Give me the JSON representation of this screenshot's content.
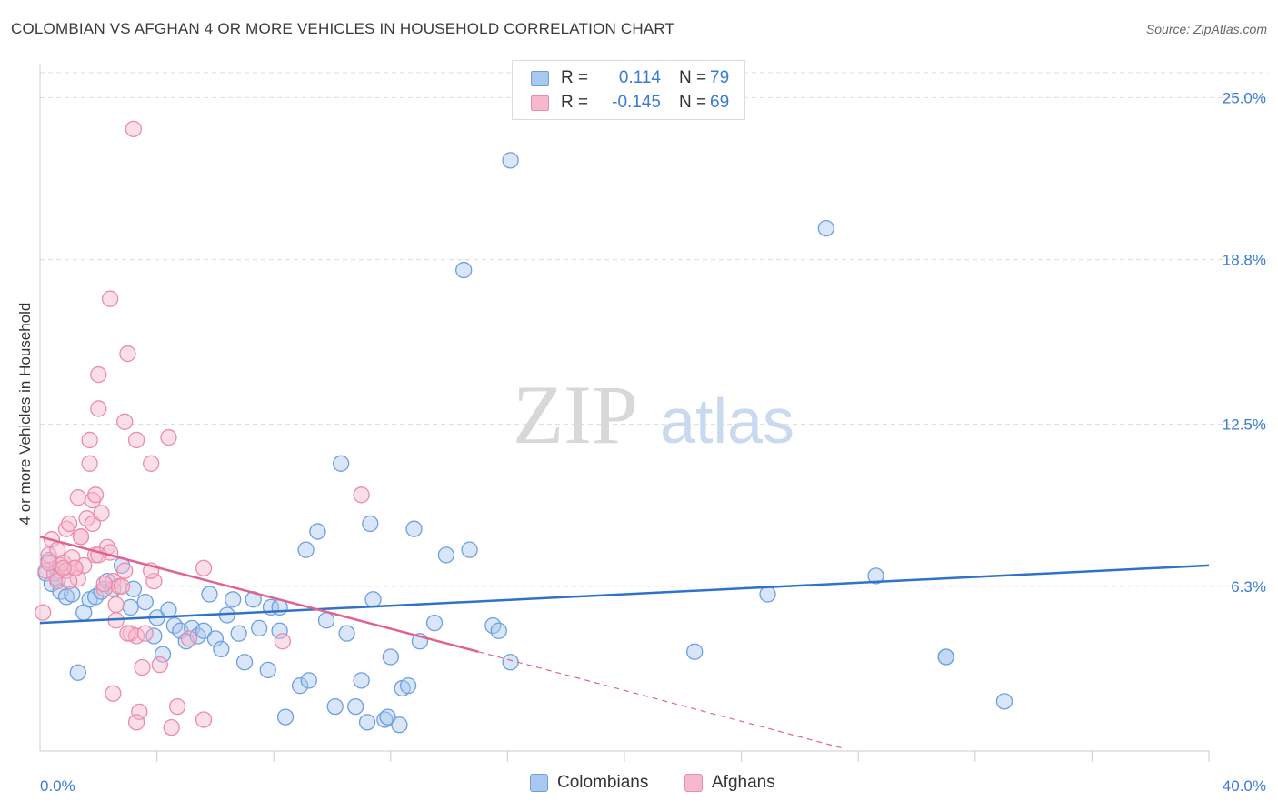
{
  "title": "COLOMBIAN VS AFGHAN 4 OR MORE VEHICLES IN HOUSEHOLD CORRELATION CHART",
  "source": "Source: ZipAtlas.com",
  "watermark": {
    "zip": "ZIP",
    "atlas": "atlas"
  },
  "legend": {
    "r_label": "R =",
    "n_label": "N =",
    "rows": [
      {
        "name": "Colombians",
        "r": "0.114",
        "n": "79",
        "fill": "#a9c8f0",
        "stroke": "#6d9fe0"
      },
      {
        "name": "Afghans",
        "r": "-0.145",
        "n": "69",
        "fill": "#f6b8cc",
        "stroke": "#ea8cab"
      }
    ]
  },
  "chart_data": {
    "type": "scatter",
    "title": "COLOMBIAN VS AFGHAN 4 OR MORE VEHICLES IN HOUSEHOLD CORRELATION CHART",
    "xlabel": "",
    "ylabel": "4 or more Vehicles in Household",
    "xlim": [
      0,
      40
    ],
    "ylim": [
      0,
      26.3
    ],
    "x_tick_labels": [
      {
        "value": 0,
        "label": "0.0%"
      },
      {
        "value": 40,
        "label": "40.0%"
      }
    ],
    "x_minor_ticks": [
      4,
      8,
      12,
      16,
      20,
      24,
      28,
      32,
      36
    ],
    "y_ticks": [
      {
        "value": 6.3,
        "label": "6.3%"
      },
      {
        "value": 12.5,
        "label": "12.5%"
      },
      {
        "value": 18.8,
        "label": "18.8%"
      },
      {
        "value": 25.0,
        "label": "25.0%"
      }
    ],
    "grid": true,
    "series": [
      {
        "name": "Colombians",
        "color": "#6d9fe0",
        "fill": "#a9c8f0",
        "line_color": "#2f72c8",
        "trend": {
          "x": [
            0,
            40
          ],
          "y": [
            4.9,
            7.1
          ],
          "dashed_to": null
        },
        "points": [
          [
            0.2,
            6.8
          ],
          [
            0.3,
            7.3
          ],
          [
            0.4,
            6.4
          ],
          [
            0.6,
            6.9
          ],
          [
            0.7,
            6.1
          ],
          [
            0.9,
            5.9
          ],
          [
            1.1,
            6.0
          ],
          [
            1.3,
            3.0
          ],
          [
            1.5,
            5.3
          ],
          [
            1.7,
            5.8
          ],
          [
            1.9,
            5.9
          ],
          [
            2.1,
            6.1
          ],
          [
            2.3,
            6.5
          ],
          [
            2.5,
            6.2
          ],
          [
            2.8,
            7.1
          ],
          [
            3.1,
            5.5
          ],
          [
            3.2,
            6.2
          ],
          [
            3.6,
            5.7
          ],
          [
            3.9,
            4.4
          ],
          [
            4.0,
            5.1
          ],
          [
            4.2,
            3.7
          ],
          [
            4.4,
            5.4
          ],
          [
            4.6,
            4.8
          ],
          [
            4.8,
            4.6
          ],
          [
            5.0,
            4.2
          ],
          [
            5.2,
            4.7
          ],
          [
            5.4,
            4.4
          ],
          [
            5.6,
            4.6
          ],
          [
            5.8,
            6.0
          ],
          [
            6.0,
            4.3
          ],
          [
            6.2,
            3.9
          ],
          [
            6.4,
            5.2
          ],
          [
            6.6,
            5.8
          ],
          [
            6.8,
            4.5
          ],
          [
            7.0,
            3.4
          ],
          [
            7.3,
            5.8
          ],
          [
            7.5,
            4.7
          ],
          [
            7.8,
            3.1
          ],
          [
            7.9,
            5.5
          ],
          [
            8.2,
            5.5
          ],
          [
            8.2,
            4.6
          ],
          [
            8.4,
            1.3
          ],
          [
            8.9,
            2.5
          ],
          [
            9.1,
            7.7
          ],
          [
            9.2,
            2.7
          ],
          [
            9.5,
            8.4
          ],
          [
            9.8,
            5.0
          ],
          [
            10.1,
            1.7
          ],
          [
            10.3,
            11.0
          ],
          [
            10.5,
            4.5
          ],
          [
            10.8,
            1.7
          ],
          [
            11.0,
            2.7
          ],
          [
            11.2,
            1.1
          ],
          [
            11.3,
            8.7
          ],
          [
            11.4,
            5.8
          ],
          [
            11.8,
            1.2
          ],
          [
            11.9,
            1.3
          ],
          [
            12.0,
            3.6
          ],
          [
            12.3,
            1.0
          ],
          [
            12.4,
            2.4
          ],
          [
            12.6,
            2.5
          ],
          [
            12.8,
            8.5
          ],
          [
            13.0,
            4.2
          ],
          [
            13.5,
            4.9
          ],
          [
            13.9,
            7.5
          ],
          [
            14.5,
            18.4
          ],
          [
            14.7,
            7.7
          ],
          [
            15.5,
            4.8
          ],
          [
            15.7,
            4.6
          ],
          [
            16.1,
            3.4
          ],
          [
            16.1,
            22.6
          ],
          [
            22.4,
            3.8
          ],
          [
            24.9,
            6.0
          ],
          [
            26.9,
            20.0
          ],
          [
            28.6,
            6.7
          ],
          [
            31.0,
            3.6
          ],
          [
            31.0,
            3.6
          ],
          [
            33.0,
            1.9
          ],
          [
            0.6,
            6.6
          ]
        ]
      },
      {
        "name": "Afghans",
        "color": "#ea8cab",
        "fill": "#f6b8cc",
        "line_color": "#e0628f",
        "trend": {
          "x": [
            0,
            15
          ],
          "y": [
            8.2,
            3.8
          ],
          "dashed_to": [
            27.5,
            0.1
          ]
        },
        "points": [
          [
            0.1,
            5.3
          ],
          [
            0.2,
            6.9
          ],
          [
            0.3,
            7.5
          ],
          [
            0.4,
            8.1
          ],
          [
            0.5,
            6.8
          ],
          [
            0.6,
            6.5
          ],
          [
            0.6,
            7.7
          ],
          [
            0.7,
            7.1
          ],
          [
            0.8,
            7.2
          ],
          [
            0.9,
            8.5
          ],
          [
            0.9,
            6.9
          ],
          [
            1.0,
            8.7
          ],
          [
            1.1,
            7.4
          ],
          [
            1.2,
            7.0
          ],
          [
            1.3,
            9.7
          ],
          [
            1.3,
            6.6
          ],
          [
            1.4,
            8.2
          ],
          [
            1.5,
            7.1
          ],
          [
            1.6,
            8.9
          ],
          [
            1.7,
            11.9
          ],
          [
            1.7,
            11.0
          ],
          [
            1.8,
            8.7
          ],
          [
            1.8,
            9.6
          ],
          [
            1.9,
            9.8
          ],
          [
            1.9,
            7.5
          ],
          [
            2.0,
            13.1
          ],
          [
            2.1,
            9.1
          ],
          [
            2.2,
            6.2
          ],
          [
            2.3,
            7.8
          ],
          [
            2.4,
            7.6
          ],
          [
            2.4,
            17.3
          ],
          [
            2.5,
            6.5
          ],
          [
            2.5,
            2.2
          ],
          [
            2.6,
            5.6
          ],
          [
            2.6,
            5.0
          ],
          [
            2.7,
            6.3
          ],
          [
            2.8,
            6.3
          ],
          [
            2.9,
            12.6
          ],
          [
            3.0,
            15.2
          ],
          [
            3.1,
            4.5
          ],
          [
            3.2,
            23.8
          ],
          [
            3.3,
            4.4
          ],
          [
            3.3,
            11.9
          ],
          [
            3.4,
            1.5
          ],
          [
            3.5,
            3.2
          ],
          [
            3.6,
            4.5
          ],
          [
            3.8,
            11.0
          ],
          [
            3.9,
            6.5
          ],
          [
            4.1,
            3.3
          ],
          [
            4.4,
            12.0
          ],
          [
            4.5,
            0.9
          ],
          [
            4.7,
            1.7
          ],
          [
            5.1,
            4.3
          ],
          [
            5.6,
            1.2
          ],
          [
            5.6,
            7.0
          ],
          [
            8.3,
            4.2
          ],
          [
            11.0,
            9.8
          ],
          [
            2.0,
            14.4
          ],
          [
            1.0,
            6.5
          ],
          [
            0.3,
            7.2
          ],
          [
            2.2,
            6.4
          ],
          [
            3.0,
            4.5
          ],
          [
            1.2,
            7.0
          ],
          [
            0.8,
            7.0
          ],
          [
            2.9,
            6.9
          ],
          [
            3.8,
            6.9
          ],
          [
            1.4,
            8.2
          ],
          [
            2.0,
            7.5
          ],
          [
            3.3,
            1.1
          ]
        ]
      }
    ]
  }
}
